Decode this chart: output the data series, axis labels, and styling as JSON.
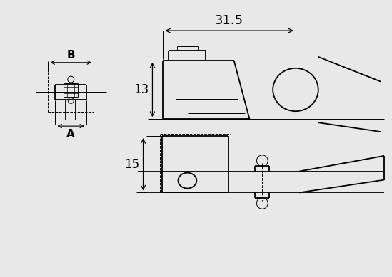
{
  "bg_color": "#e8e8e8",
  "line_color": "#000000",
  "figsize": [
    5.49,
    3.89
  ],
  "dpi": 100,
  "dim_31_5": "31.5",
  "dim_13": "13",
  "dim_15": "15",
  "dim_B": "B",
  "dim_A": "A",
  "lw": 1.3,
  "tlw": 0.7,
  "font_dim": 11,
  "font_label": 10
}
